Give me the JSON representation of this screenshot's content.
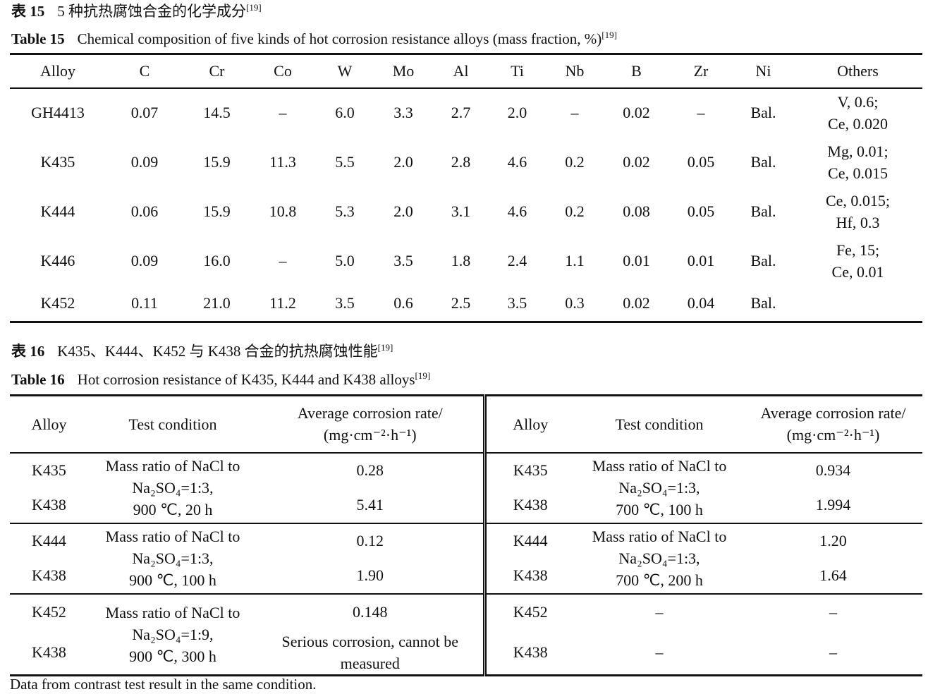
{
  "table15": {
    "caption_cn_label": "表 15",
    "caption_cn": "5 种抗热腐蚀合金的化学成分",
    "caption_en_label": "Table 15",
    "caption_en": "Chemical composition of five kinds of hot corrosion resistance alloys (mass fraction, %)",
    "ref": "[19]",
    "headers": [
      "Alloy",
      "C",
      "Cr",
      "Co",
      "W",
      "Mo",
      "Al",
      "Ti",
      "Nb",
      "B",
      "Zr",
      "Ni",
      "Others"
    ],
    "rows": [
      [
        "GH4413",
        "0.07",
        "14.5",
        "–",
        "6.0",
        "3.3",
        "2.7",
        "2.0",
        "–",
        "0.02",
        "–",
        "Bal.",
        "V, 0.6;\nCe, 0.020"
      ],
      [
        "K435",
        "0.09",
        "15.9",
        "11.3",
        "5.5",
        "2.0",
        "2.8",
        "4.6",
        "0.2",
        "0.02",
        "0.05",
        "Bal.",
        "Mg, 0.01;\nCe, 0.015"
      ],
      [
        "K444",
        "0.06",
        "15.9",
        "10.8",
        "5.3",
        "2.0",
        "3.1",
        "4.6",
        "0.2",
        "0.08",
        "0.05",
        "Bal.",
        "Ce, 0.015;\nHf, 0.3"
      ],
      [
        "K446",
        "0.09",
        "16.0",
        "–",
        "5.0",
        "3.5",
        "1.8",
        "2.4",
        "1.1",
        "0.01",
        "0.01",
        "Bal.",
        "Fe, 15;\nCe, 0.01"
      ],
      [
        "K452",
        "0.11",
        "21.0",
        "11.2",
        "3.5",
        "0.6",
        "2.5",
        "3.5",
        "0.3",
        "0.02",
        "0.04",
        "Bal.",
        ""
      ]
    ]
  },
  "table16": {
    "caption_cn_label": "表 16",
    "caption_cn": "K435、K444、K452 与 K438 合金的抗热腐蚀性能",
    "caption_en_label": "Table 16",
    "caption_en": "Hot corrosion resistance of K435, K444 and K438 alloys",
    "ref": "[19]",
    "headers": [
      "Alloy",
      "Test condition",
      "Average corrosion rate/\n(mg·cm⁻²·h⁻¹)",
      "Alloy",
      "Test condition",
      "Average corrosion rate/\n(mg·cm⁻²·h⁻¹)"
    ],
    "groups": [
      {
        "left": {
          "alloys": [
            "K435",
            "K438"
          ],
          "condition": "Mass ratio of NaCl to\nNa₂SO₄=1:3,\n900 ℃, 20 h",
          "rates": [
            "0.28",
            "5.41"
          ]
        },
        "right": {
          "alloys": [
            "K435",
            "K438"
          ],
          "condition": "Mass ratio of NaCl to\nNa₂SO₄=1:3,\n700 ℃, 100 h",
          "rates": [
            "0.934",
            "1.994"
          ]
        }
      },
      {
        "left": {
          "alloys": [
            "K444",
            "K438"
          ],
          "condition": "Mass ratio of NaCl to\nNa₂SO₄=1:3,\n900 ℃, 100 h",
          "rates": [
            "0.12",
            "1.90"
          ]
        },
        "right": {
          "alloys": [
            "K444",
            "K438"
          ],
          "condition": "Mass ratio of NaCl to\nNa₂SO₄=1:3,\n700 ℃, 200 h",
          "rates": [
            "1.20",
            "1.64"
          ]
        }
      },
      {
        "left": {
          "alloys": [
            "K452",
            "K438"
          ],
          "condition": "Mass ratio of NaCl to\nNa₂SO₄=1:9,\n900 ℃, 300 h",
          "rates": [
            "0.148",
            "Serious corrosion, cannot be\nmeasured"
          ]
        },
        "right": {
          "alloys": [
            "K452",
            "K438"
          ],
          "condition": "–",
          "rates": [
            "–",
            "–"
          ]
        },
        "right_conditions": [
          "–",
          "–"
        ]
      }
    ],
    "footnote": "Data from contrast test result in the same condition."
  }
}
